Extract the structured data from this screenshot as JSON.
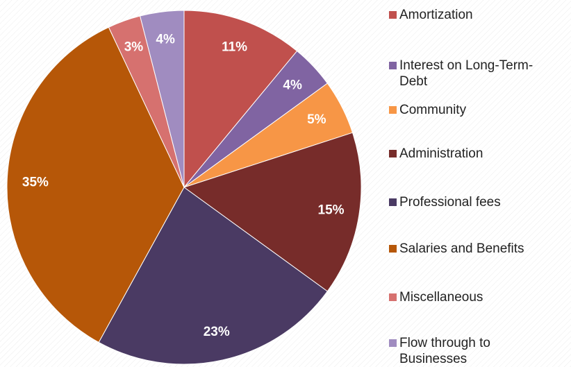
{
  "chart_data": {
    "type": "pie",
    "categories": [
      "Amortization",
      "Interest on Long-Term-Debt",
      "Community",
      "Administration",
      "Professional fees",
      "Salaries and Benefits",
      "Miscellaneous",
      "Flow through to Businesses"
    ],
    "values": [
      11,
      4,
      5,
      15,
      23,
      35,
      3,
      4
    ],
    "value_labels": [
      "11%",
      "4%",
      "5%",
      "15%",
      "23%",
      "35%",
      "3%",
      "4%"
    ],
    "colors": [
      "#c0504d",
      "#8064a2",
      "#f79646",
      "#772c2a",
      "#4a3a63",
      "#b65708",
      "#d6716f",
      "#a08cc0"
    ],
    "legend": "right"
  }
}
